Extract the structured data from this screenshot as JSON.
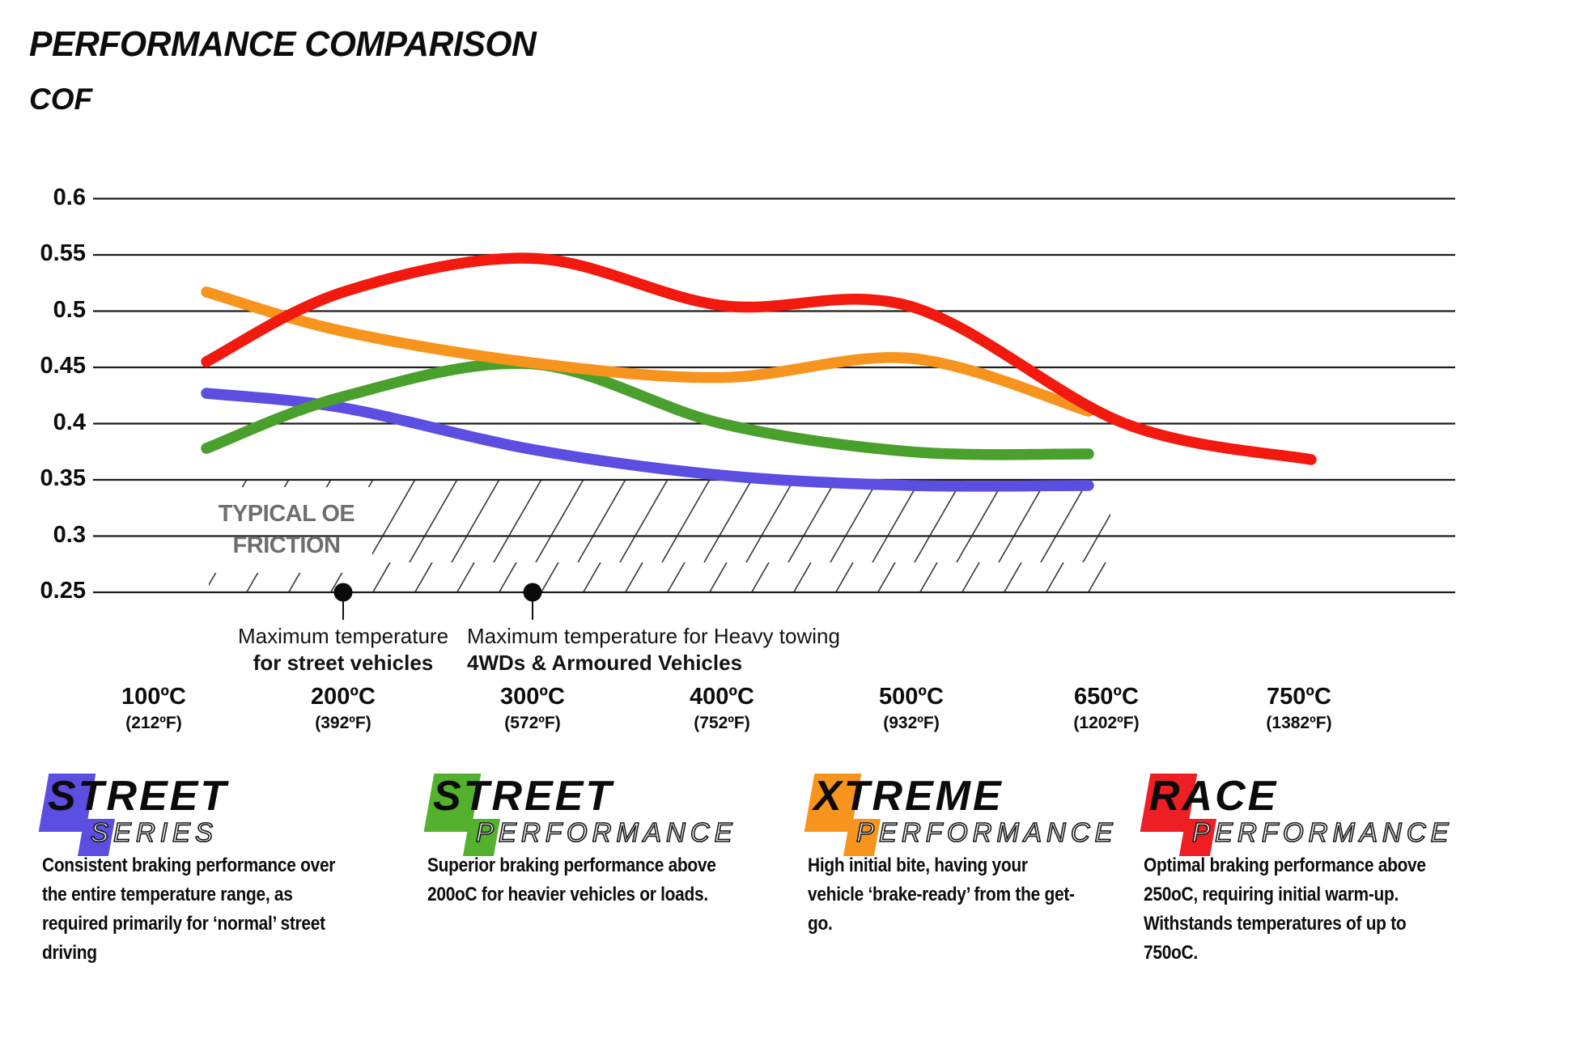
{
  "page": {
    "title": "PERFORMANCE COMPARISON",
    "y_axis_title": "COF"
  },
  "chart_data": {
    "type": "line",
    "title": "PERFORMANCE COMPARISON",
    "ylabel": "COF",
    "xlabel": "",
    "x_categories": [
      "100ºC",
      "200ºC",
      "300ºC",
      "400ºC",
      "500ºC",
      "650ºC",
      "750ºC"
    ],
    "x_categories_fahrenheit": [
      "(212ºF)",
      "(392ºF)",
      "(572ºF)",
      "(752ºF)",
      "(932ºF)",
      "(1202ºF)",
      "(1382ºF)"
    ],
    "yticks": [
      "0.25",
      "0.3",
      "0.35",
      "0.4",
      "0.45",
      "0.5",
      "0.55",
      "0.6"
    ],
    "ylim": [
      0.25,
      0.625
    ],
    "grid": "horizontal-only",
    "legend_position": "below",
    "series": [
      {
        "name": "Street Series",
        "color": "#5b4ee0",
        "values": [
          0.427,
          0.414,
          0.377,
          0.354,
          0.345,
          0.345,
          null
        ]
      },
      {
        "name": "Street Performance",
        "color": "#4aa02c",
        "values": [
          0.378,
          0.424,
          0.453,
          0.4,
          0.375,
          0.373,
          null
        ]
      },
      {
        "name": "Xtreme Performance",
        "color": "#f7941e",
        "values": [
          0.517,
          0.482,
          0.454,
          0.441,
          0.458,
          0.411,
          null
        ]
      },
      {
        "name": "Race Performance",
        "color": "#f2190f",
        "values": [
          0.455,
          0.517,
          0.547,
          0.505,
          0.504,
          0.4,
          0.368
        ]
      }
    ],
    "oe_band": {
      "label_line1": "TYPICAL OE",
      "label_line2": "FRICTION",
      "cof_range": [
        0.25,
        0.35
      ],
      "style": "diagonal-hatch"
    },
    "annotations": [
      {
        "at": "200ºC",
        "line1": "Maximum temperature",
        "line2": "for street vehicles"
      },
      {
        "at": "300ºC",
        "line1": "Maximum temperature for Heavy towing",
        "line2": "4WDs & Armoured Vehicles"
      }
    ]
  },
  "legend": [
    {
      "line1": "STREET",
      "line2": "SERIES",
      "color": "#5b4ee0",
      "description": "Consistent braking performance over the entire temperature range, as required primarily for ‘normal’ street driving"
    },
    {
      "line1": "STREET",
      "line2": "PERFORMANCE",
      "color": "#53b12e",
      "description": "Superior braking performance above 200oC for heavier vehicles or loads."
    },
    {
      "line1": "XTREME",
      "line2": "PERFORMANCE",
      "color": "#f7941e",
      "description": "High initial bite, having your vehicle ‘brake-ready’ from the get-go."
    },
    {
      "line1": "RACE",
      "line2": "PERFORMANCE",
      "color": "#ed1f24",
      "description": "Optimal braking performance above 250oC, requiring initial warm-up. Withstands temperatures of up to 750oC."
    }
  ]
}
